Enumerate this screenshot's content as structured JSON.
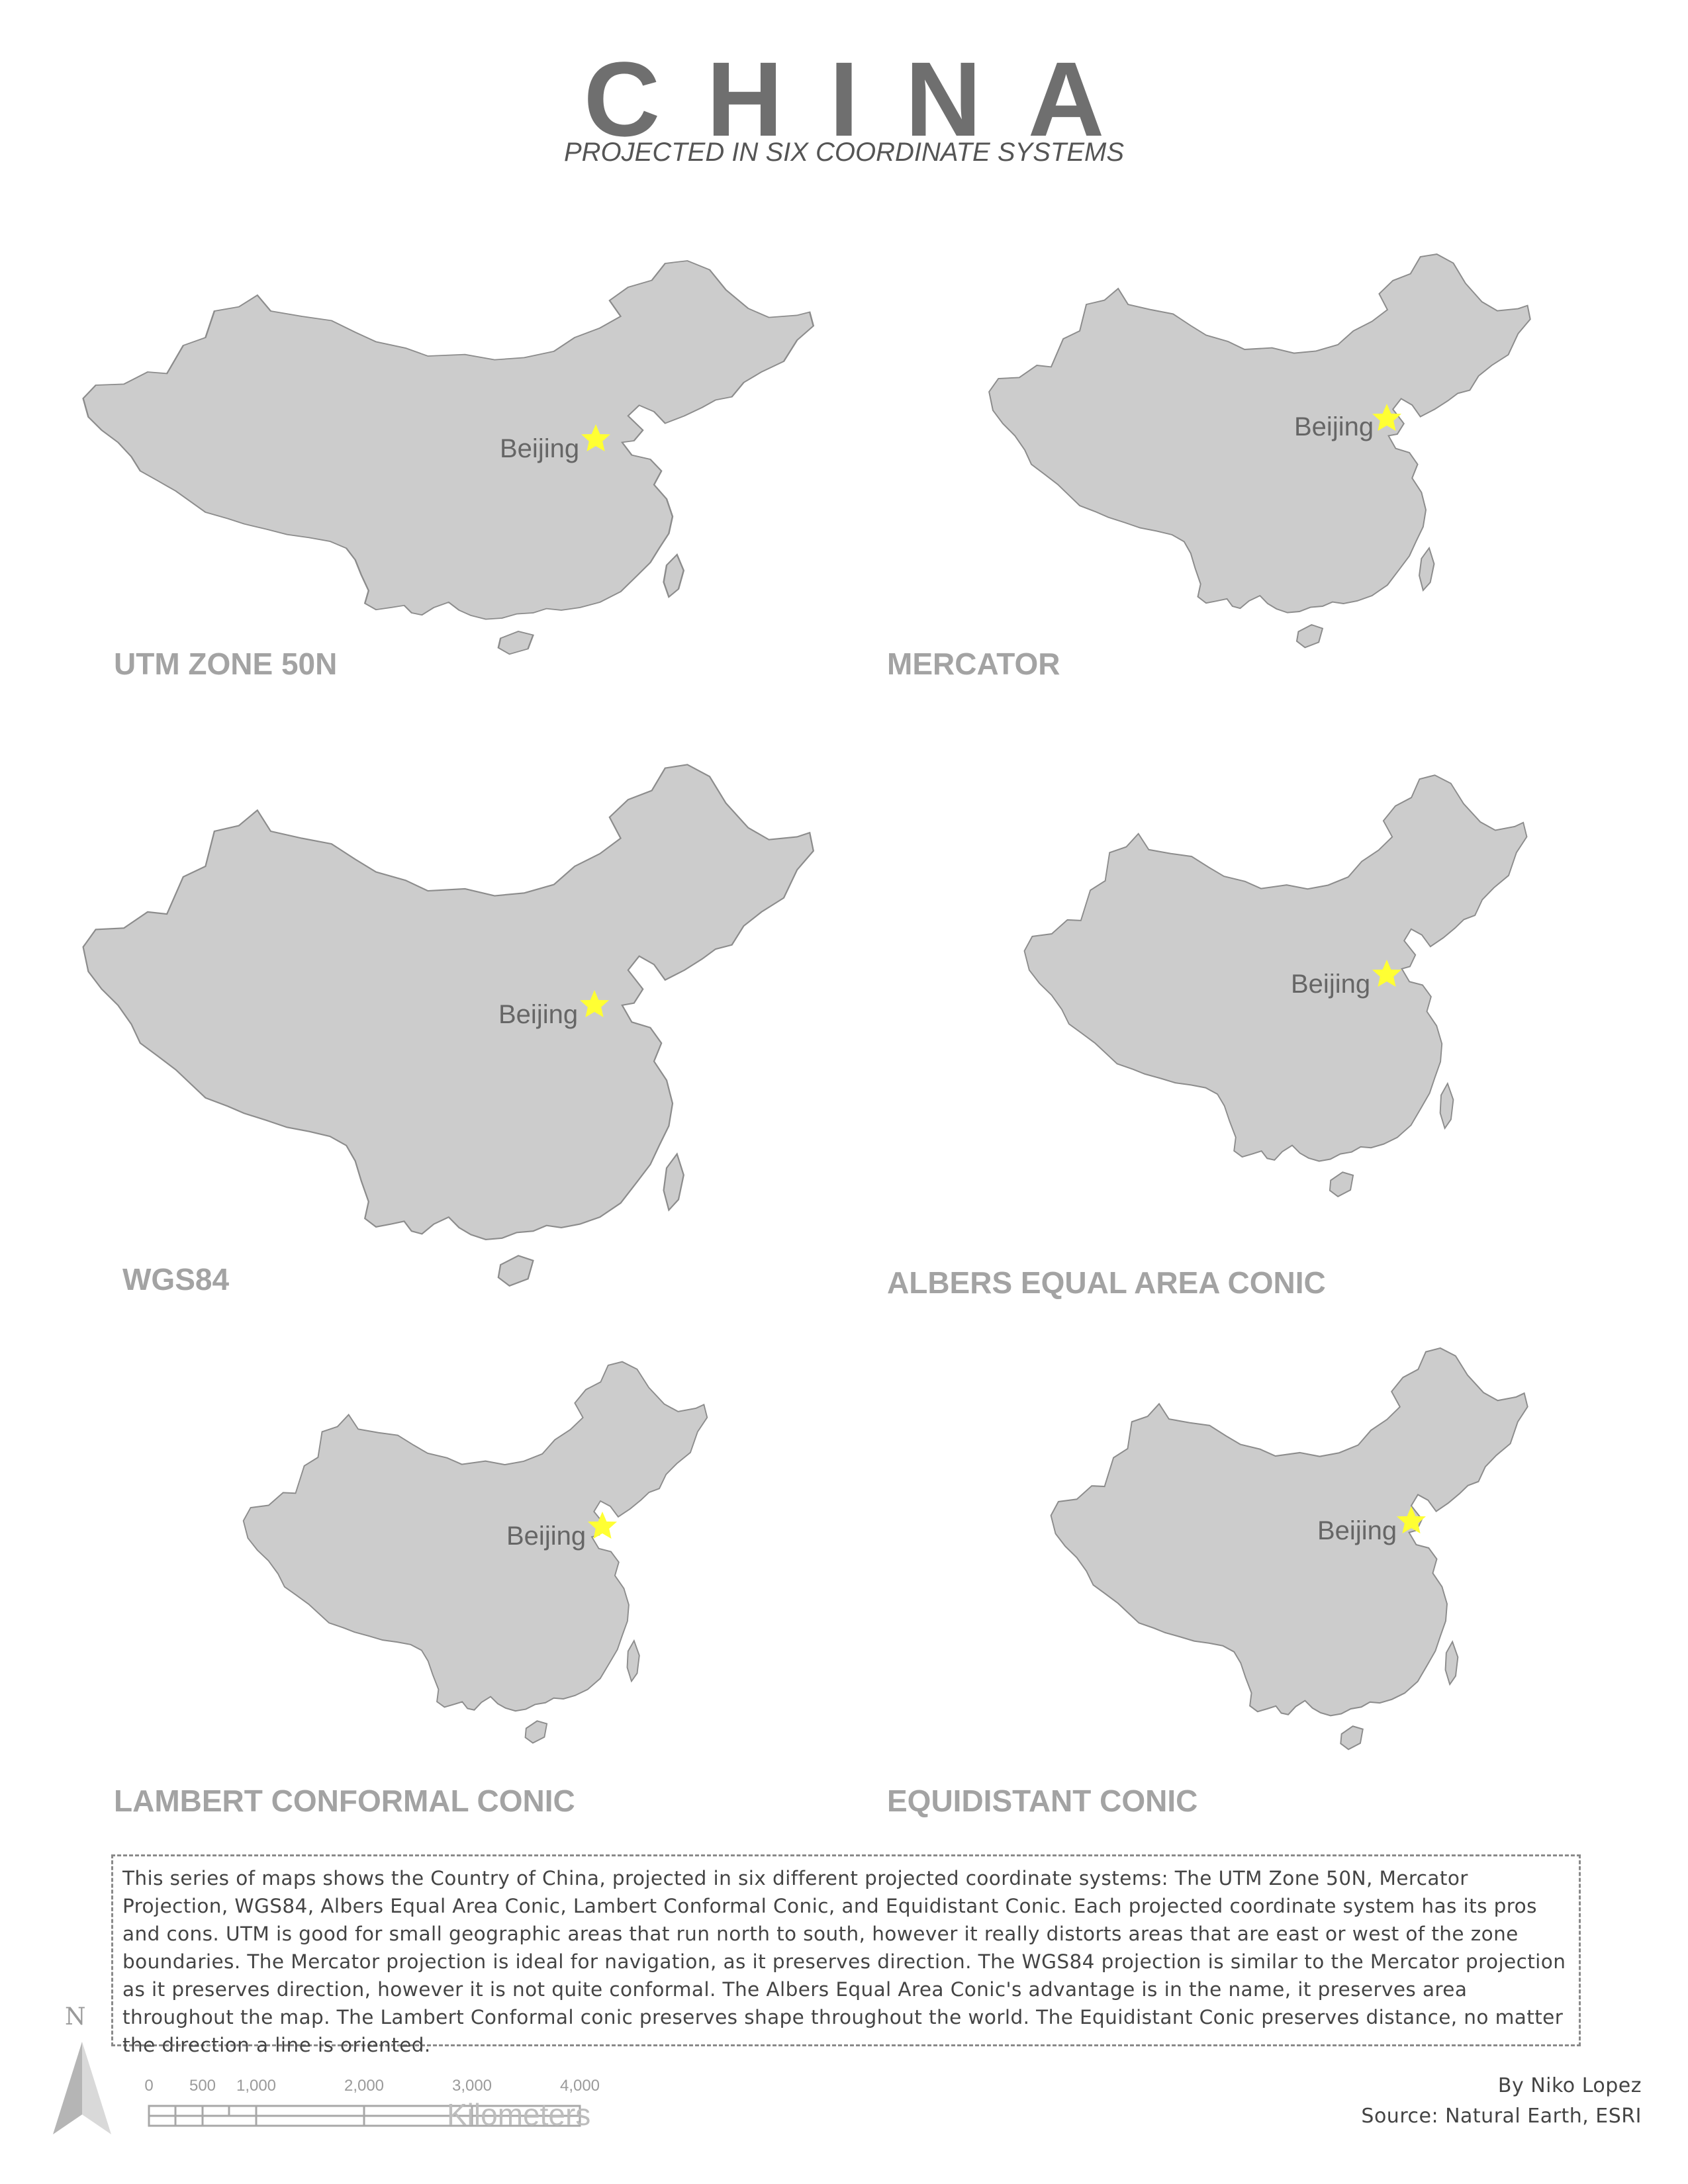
{
  "title": "CHINA",
  "subtitle": "PROJECTED IN SIX COORDINATE SYSTEMS",
  "colors": {
    "land": "#cccccc",
    "outline": "#8c8c8c",
    "capital_star": "#ffff33",
    "label": "#a3a3a3"
  },
  "capital_name": "Beijing",
  "projections": [
    {
      "label": "UTM ZONE 50N"
    },
    {
      "label": "MERCATOR"
    },
    {
      "label": "WGS84"
    },
    {
      "label": "ALBERS EQUAL  AREA CONIC"
    },
    {
      "label": "LAMBERT CONFORMAL CONIC"
    },
    {
      "label": "EQUIDISTANT CONIC"
    }
  ],
  "description": "This series of maps shows the Country of China, projected in six different projected coordinate systems: The UTM Zone 50N, Mercator Projection, WGS84, Albers Equal Area Conic, Lambert Conformal Conic, and Equidistant Conic. Each projected coordinate system has its pros and cons. UTM is good for small geographic areas that run north to south, however it really distorts areas that are east or west of the zone boundaries. The Mercator projection is ideal for navigation, as it preserves direction. The WGS84 projection is similar to the Mercator projection as it preserves direction, however it is not quite conformal. The Albers Equal Area Conic's advantage is in the name, it preserves area throughout the map. The Lambert Conformal conic preserves shape throughout the world. The Equidistant Conic preserves distance, no matter the direction a line is oriented.",
  "north_arrow": {
    "letter": "N"
  },
  "scale_bar": {
    "ticks": [
      "0",
      "500",
      "1,000",
      "2,000",
      "3,000",
      "4,000"
    ],
    "units": "Kilometers"
  },
  "credits": {
    "author": "By Niko Lopez",
    "source": "Source: Natural Earth, ESRI"
  }
}
